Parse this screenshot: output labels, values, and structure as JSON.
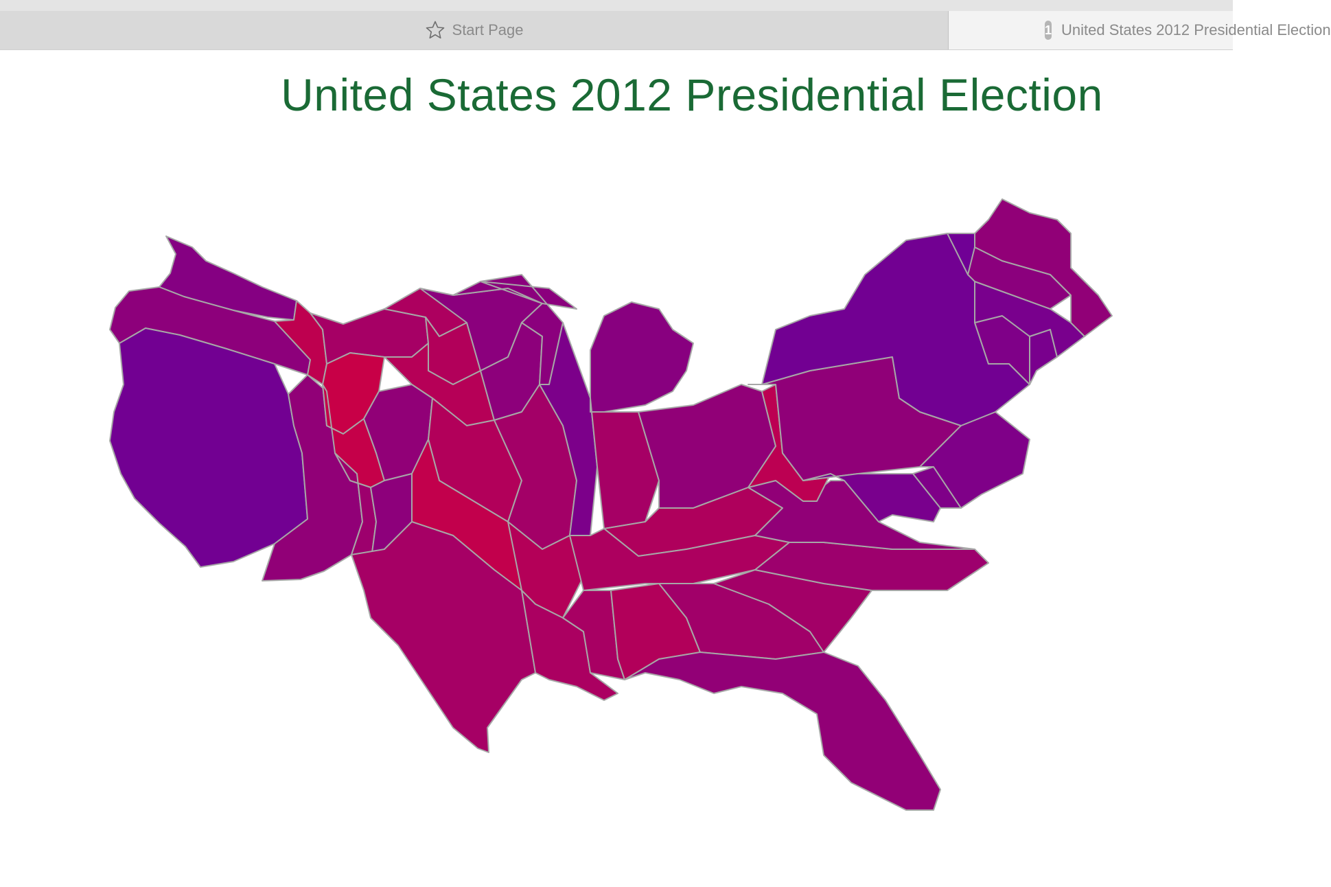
{
  "browser": {
    "tabs": [
      {
        "label": "Start Page",
        "icon": "star-icon"
      },
      {
        "label": "United States 2012 Presidential Election",
        "badge": "1"
      }
    ]
  },
  "page": {
    "title": "United States 2012 Presidential Election"
  },
  "map": {
    "type": "cartogram",
    "border_color": "#a7a7a7",
    "colors": {
      "dem": "#5a00a8",
      "rep": "#d4003c"
    },
    "states": [
      {
        "id": "wa",
        "share": 0.35
      },
      {
        "id": "or",
        "share": 0.42
      },
      {
        "id": "ca",
        "share": 0.2
      },
      {
        "id": "nv",
        "share": 0.45
      },
      {
        "id": "id",
        "share": 0.82
      },
      {
        "id": "mt",
        "share": 0.62
      },
      {
        "id": "wy",
        "share": 0.9
      },
      {
        "id": "ut",
        "share": 0.88
      },
      {
        "id": "co",
        "share": 0.45
      },
      {
        "id": "az",
        "share": 0.55
      },
      {
        "id": "nm",
        "share": 0.42
      },
      {
        "id": "nd",
        "share": 0.68
      },
      {
        "id": "sd",
        "share": 0.72
      },
      {
        "id": "ne",
        "share": 0.75
      },
      {
        "id": "ks",
        "share": 0.72
      },
      {
        "id": "ok",
        "share": 0.85
      },
      {
        "id": "tx",
        "share": 0.62
      },
      {
        "id": "mn",
        "share": 0.4
      },
      {
        "id": "ia",
        "share": 0.42
      },
      {
        "id": "mo",
        "share": 0.6
      },
      {
        "id": "ar",
        "share": 0.74
      },
      {
        "id": "la",
        "share": 0.66
      },
      {
        "id": "wi",
        "share": 0.4
      },
      {
        "id": "il",
        "share": 0.28
      },
      {
        "id": "mi",
        "share": 0.38
      },
      {
        "id": "in",
        "share": 0.62
      },
      {
        "id": "oh",
        "share": 0.45
      },
      {
        "id": "ky",
        "share": 0.7
      },
      {
        "id": "tn",
        "share": 0.68
      },
      {
        "id": "ms",
        "share": 0.64
      },
      {
        "id": "al",
        "share": 0.72
      },
      {
        "id": "ga",
        "share": 0.58
      },
      {
        "id": "fl",
        "share": 0.46
      },
      {
        "id": "sc",
        "share": 0.6
      },
      {
        "id": "nc",
        "share": 0.55
      },
      {
        "id": "va",
        "share": 0.45
      },
      {
        "id": "wv",
        "share": 0.8
      },
      {
        "id": "pa",
        "share": 0.44
      },
      {
        "id": "ny",
        "share": 0.2
      },
      {
        "id": "nj",
        "share": 0.3
      },
      {
        "id": "md",
        "share": 0.25
      },
      {
        "id": "de",
        "share": 0.3
      },
      {
        "id": "ct",
        "share": 0.3
      },
      {
        "id": "ri",
        "share": 0.25
      },
      {
        "id": "ma",
        "share": 0.25
      },
      {
        "id": "vt",
        "share": 0.18
      },
      {
        "id": "nh",
        "share": 0.4
      },
      {
        "id": "me",
        "share": 0.45
      }
    ]
  }
}
